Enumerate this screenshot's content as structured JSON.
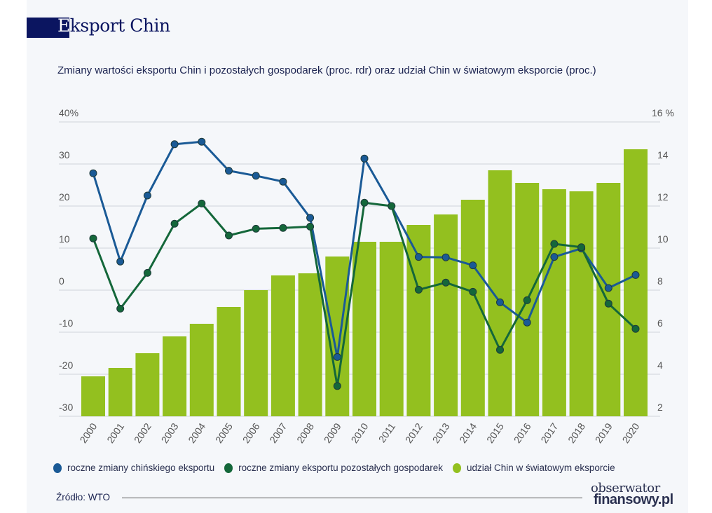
{
  "header": {
    "title_first_letter": "E",
    "title_rest": "ksport Chin",
    "subtitle": "Zmiany wartości eksportu Chin i pozostałych gospodarek (proc. rdr) oraz udział Chin w światowym eksporcie (proc.)"
  },
  "chart_data": {
    "type": "bar+line",
    "title": "Eksport Chin",
    "subtitle": "Zmiany wartości eksportu Chin i pozostałych gospodarek (proc. rdr) oraz udział Chin w światowym eksporcie (proc.)",
    "categories": [
      "2000",
      "2001",
      "2002",
      "2003",
      "2004",
      "2005",
      "2006",
      "2007",
      "2008",
      "2009",
      "2010",
      "2011",
      "2012",
      "2013",
      "2014",
      "2015",
      "2016",
      "2017",
      "2018",
      "2019",
      "2020"
    ],
    "left_axis": {
      "ylim": [
        -30,
        40
      ],
      "ticks": [
        "40%",
        "30",
        "20",
        "10",
        "0",
        "-10",
        "-20",
        "-30"
      ],
      "tick_values": [
        40,
        30,
        20,
        10,
        0,
        -10,
        -20,
        -30
      ]
    },
    "right_axis": {
      "ylim": [
        2,
        16
      ],
      "ticks": [
        "16 %",
        "14",
        "12",
        "10",
        "8",
        "6",
        "4",
        "2"
      ],
      "tick_values": [
        16,
        14,
        12,
        10,
        8,
        6,
        4,
        2
      ]
    },
    "grid": true,
    "legend_placement": "bottom",
    "series": [
      {
        "name": "roczne zmiany chińskiego eksportu",
        "type": "line",
        "axis": "left",
        "color": "#1a5a96",
        "values": [
          27.8,
          6.8,
          22.5,
          34.7,
          35.3,
          28.4,
          27.2,
          25.8,
          17.2,
          -15.9,
          31.3,
          20.0,
          7.9,
          7.8,
          5.9,
          -2.9,
          -7.7,
          7.9,
          9.9,
          0.5,
          3.6
        ]
      },
      {
        "name": "roczne zmiany eksportu pozostałych gospodarek",
        "type": "line",
        "axis": "left",
        "color": "#14673a",
        "values": [
          12.3,
          -4.4,
          4.1,
          15.8,
          20.6,
          13.0,
          14.6,
          14.8,
          15.1,
          -22.8,
          20.8,
          20.0,
          0.1,
          1.8,
          -0.4,
          -14.2,
          -2.4,
          11.0,
          10.2,
          -3.2,
          -9.2
        ]
      },
      {
        "name": "udział Chin w światowym eksporcie",
        "type": "bar",
        "axis": "right",
        "color": "#93c01f",
        "values": [
          3.9,
          4.3,
          5.0,
          5.8,
          6.4,
          7.2,
          8.0,
          8.7,
          8.8,
          9.6,
          10.3,
          10.3,
          11.1,
          11.6,
          12.3,
          13.7,
          13.1,
          12.8,
          12.7,
          13.1,
          14.7
        ]
      }
    ]
  },
  "footer": {
    "source": "Źródło: WTO",
    "logo_line1": "obserwator",
    "logo_line2": "finansowy.pl"
  }
}
